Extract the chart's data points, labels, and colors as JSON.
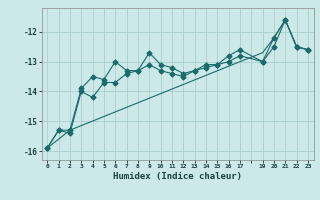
{
  "xlabel": "Humidex (Indice chaleur)",
  "ylabel": "",
  "bg_color": "#cce8e8",
  "grid_color": "#aacfcf",
  "line_color": "#1a6b6b",
  "xlim": [
    -0.5,
    23.5
  ],
  "ylim": [
    -16.3,
    -11.2
  ],
  "line1_x": [
    0,
    1,
    2,
    3,
    4,
    5,
    6,
    7,
    8,
    9,
    10,
    11,
    12,
    13,
    14,
    15,
    16,
    17,
    19,
    20,
    21,
    22,
    23
  ],
  "line1_y": [
    -15.9,
    -15.3,
    -15.3,
    -13.9,
    -13.5,
    -13.6,
    -13.0,
    -13.3,
    -13.3,
    -12.7,
    -13.1,
    -13.2,
    -13.4,
    -13.3,
    -13.1,
    -13.1,
    -13.0,
    -12.8,
    -13.0,
    -12.5,
    -11.6,
    -12.5,
    -12.6
  ],
  "line2_x": [
    0,
    1,
    2,
    3,
    4,
    5,
    6,
    7,
    8,
    9,
    10,
    11,
    12,
    13,
    14,
    15,
    16,
    17,
    19,
    20,
    21,
    22,
    23
  ],
  "line2_y": [
    -15.9,
    -15.3,
    -15.4,
    -14.0,
    -14.2,
    -13.7,
    -13.7,
    -13.4,
    -13.3,
    -13.1,
    -13.3,
    -13.4,
    -13.5,
    -13.3,
    -13.2,
    -13.1,
    -12.8,
    -12.6,
    -13.0,
    -12.2,
    -11.6,
    -12.5,
    -12.6
  ],
  "line3_x": [
    0,
    2,
    17,
    19,
    20,
    21,
    22,
    23
  ],
  "line3_y": [
    -15.9,
    -15.3,
    -13.0,
    -12.7,
    -12.2,
    -11.6,
    -12.5,
    -12.6
  ],
  "xtick_pos": [
    0,
    1,
    2,
    3,
    4,
    5,
    6,
    7,
    8,
    9,
    10,
    11,
    12,
    13,
    14,
    15,
    16,
    17,
    18,
    19,
    20,
    21,
    22,
    23
  ],
  "xtick_labels": [
    "0",
    "1",
    "2",
    "3",
    "4",
    "5",
    "6",
    "7",
    "8",
    "9",
    "10",
    "11",
    "12",
    "13",
    "14",
    "15",
    "16",
    "17",
    "",
    "19",
    "20",
    "21",
    "22",
    "23"
  ],
  "ytick_vals": [
    -16,
    -15,
    -14,
    -13,
    -12
  ]
}
